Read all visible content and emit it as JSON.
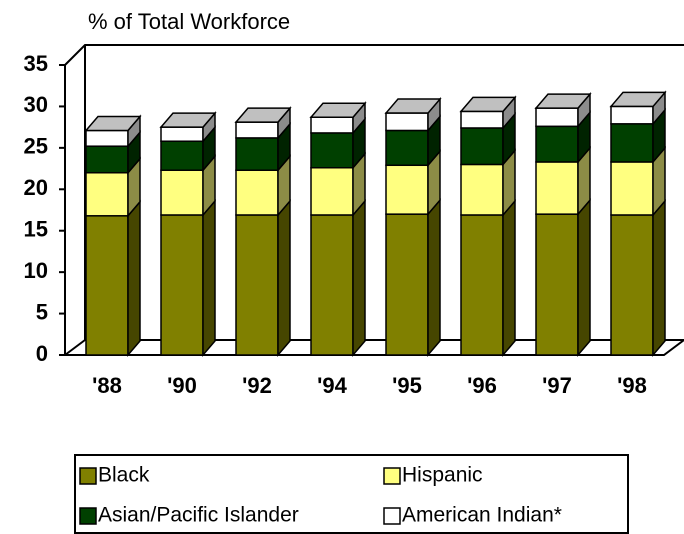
{
  "chart_data": {
    "type": "bar3d_stacked",
    "title": "% of Total Workforce",
    "categories": [
      "'88",
      "'90",
      "'92",
      "'94",
      "'95",
      "'96",
      "'97",
      "'98"
    ],
    "series": [
      {
        "name": "Black",
        "color": "#808000",
        "values": [
          16.8,
          16.9,
          16.9,
          16.9,
          17.0,
          16.9,
          17.0,
          16.9
        ]
      },
      {
        "name": "Hispanic",
        "color": "#ffff80",
        "values": [
          5.2,
          5.4,
          5.4,
          5.7,
          5.9,
          6.1,
          6.3,
          6.4
        ]
      },
      {
        "name": "Asian/Pacific Islander",
        "color": "#004000",
        "values": [
          3.2,
          3.5,
          3.9,
          4.2,
          4.2,
          4.4,
          4.3,
          4.6
        ]
      },
      {
        "name": "American Indian*",
        "color": "#ffffff",
        "values": [
          1.9,
          1.7,
          1.9,
          1.9,
          2.1,
          2.0,
          2.2,
          2.1
        ]
      }
    ],
    "ylim": [
      0,
      35
    ],
    "yticks": [
      0,
      5,
      10,
      15,
      20,
      25,
      30,
      35
    ],
    "grid": false
  }
}
